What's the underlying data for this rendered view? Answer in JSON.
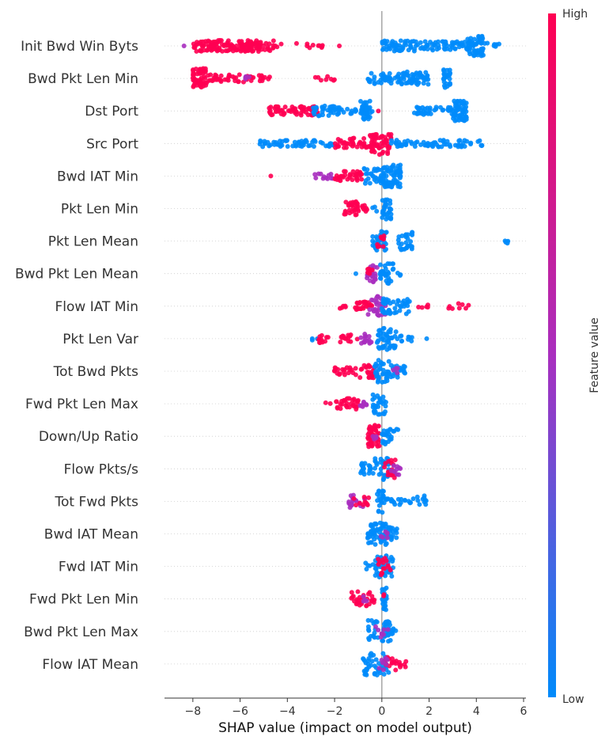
{
  "chart_data": {
    "type": "scatter",
    "subtype": "shap-beeswarm",
    "xlabel": "SHAP value (impact on model output)",
    "xlim": [
      -9.2,
      6.1
    ],
    "xticks": [
      -8,
      -6,
      -4,
      -2,
      0,
      2,
      4,
      6
    ],
    "xtick_labels": [
      "−8",
      "−6",
      "−4",
      "−2",
      "0",
      "2",
      "4",
      "6"
    ],
    "grid": false,
    "features": [
      {
        "name": "Init Bwd Win Byts",
        "clusters": [
          {
            "x": [
              -8.0,
              -4.5
            ],
            "spread": 0.5,
            "n": 160,
            "color": "high"
          },
          {
            "x": [
              -4.5,
              -2.5
            ],
            "spread": 0.25,
            "n": 12,
            "color": "high"
          },
          {
            "x": [
              -8.5,
              -8.3
            ],
            "spread": 0.0,
            "n": 1,
            "color": "mid"
          },
          {
            "x": [
              -1.8,
              -1.8
            ],
            "spread": 0.0,
            "n": 1,
            "color": "high"
          },
          {
            "x": [
              0.0,
              1.5
            ],
            "spread": 0.5,
            "n": 50,
            "color": "low"
          },
          {
            "x": [
              1.5,
              3.5
            ],
            "spread": 0.4,
            "n": 50,
            "color": "low"
          },
          {
            "x": [
              3.5,
              4.3
            ],
            "spread": 0.9,
            "n": 60,
            "color": "low"
          },
          {
            "x": [
              4.3,
              5.0
            ],
            "spread": 0.3,
            "n": 8,
            "color": "low"
          }
        ]
      },
      {
        "name": "Bwd Pkt Len Min",
        "clusters": [
          {
            "x": [
              -8.0,
              -7.4
            ],
            "spread": 0.9,
            "n": 55,
            "color": "high"
          },
          {
            "x": [
              -7.4,
              -5.4
            ],
            "spread": 0.35,
            "n": 40,
            "color": "high"
          },
          {
            "x": [
              -5.2,
              -4.6
            ],
            "spread": 0.3,
            "n": 10,
            "color": "high"
          },
          {
            "x": [
              -3.4,
              -2.0
            ],
            "spread": 0.2,
            "n": 8,
            "color": "high"
          },
          {
            "x": [
              -6.0,
              -5.6
            ],
            "spread": 0.2,
            "n": 4,
            "color": "mid"
          },
          {
            "x": [
              -0.6,
              0.8
            ],
            "spread": 0.5,
            "n": 40,
            "color": "low"
          },
          {
            "x": [
              0.8,
              2.0
            ],
            "spread": 0.6,
            "n": 55,
            "color": "low"
          },
          {
            "x": [
              2.6,
              2.9
            ],
            "spread": 0.9,
            "n": 25,
            "color": "low"
          }
        ]
      },
      {
        "name": "Dst Port",
        "clusters": [
          {
            "x": [
              -4.8,
              -2.6
            ],
            "spread": 0.4,
            "n": 70,
            "color": "high"
          },
          {
            "x": [
              -3.0,
              -1.8
            ],
            "spread": 0.45,
            "n": 40,
            "color": "low"
          },
          {
            "x": [
              -1.8,
              -0.4
            ],
            "spread": 0.3,
            "n": 25,
            "color": "low"
          },
          {
            "x": [
              -0.9,
              -0.5
            ],
            "spread": 0.9,
            "n": 35,
            "color": "low"
          },
          {
            "x": [
              -0.2,
              0.0
            ],
            "spread": 0.0,
            "n": 1,
            "color": "high"
          },
          {
            "x": [
              1.3,
              3.0
            ],
            "spread": 0.35,
            "n": 40,
            "color": "low"
          },
          {
            "x": [
              3.0,
              3.6
            ],
            "spread": 0.9,
            "n": 60,
            "color": "low"
          }
        ]
      },
      {
        "name": "Src Port",
        "clusters": [
          {
            "x": [
              -5.2,
              -2.0
            ],
            "spread": 0.3,
            "n": 60,
            "color": "low"
          },
          {
            "x": [
              -2.0,
              -0.5
            ],
            "spread": 0.5,
            "n": 40,
            "color": "high"
          },
          {
            "x": [
              -0.5,
              0.4
            ],
            "spread": 1.0,
            "n": 60,
            "color": "high"
          },
          {
            "x": [
              0.4,
              4.3
            ],
            "spread": 0.3,
            "n": 70,
            "color": "low"
          }
        ]
      },
      {
        "name": "Bwd IAT Min",
        "clusters": [
          {
            "x": [
              -4.7,
              -4.7
            ],
            "spread": 0.0,
            "n": 1,
            "color": "high"
          },
          {
            "x": [
              -2.9,
              -2.0
            ],
            "spread": 0.25,
            "n": 12,
            "color": "mid"
          },
          {
            "x": [
              -2.0,
              -0.8
            ],
            "spread": 0.45,
            "n": 35,
            "color": "high"
          },
          {
            "x": [
              -0.8,
              0.0
            ],
            "spread": 0.7,
            "n": 30,
            "color": "low"
          },
          {
            "x": [
              0.0,
              0.8
            ],
            "spread": 1.0,
            "n": 70,
            "color": "low"
          }
        ]
      },
      {
        "name": "Pkt Len Min",
        "clusters": [
          {
            "x": [
              -1.6,
              -1.0
            ],
            "spread": 0.7,
            "n": 30,
            "color": "high"
          },
          {
            "x": [
              -1.0,
              -0.6
            ],
            "spread": 0.35,
            "n": 10,
            "color": "high"
          },
          {
            "x": [
              -0.4,
              -0.2
            ],
            "spread": 0.3,
            "n": 3,
            "color": "low"
          },
          {
            "x": [
              0.0,
              0.4
            ],
            "spread": 1.0,
            "n": 30,
            "color": "low"
          }
        ]
      },
      {
        "name": "Pkt Len Mean",
        "clusters": [
          {
            "x": [
              -0.4,
              0.2
            ],
            "spread": 0.9,
            "n": 40,
            "color": "low"
          },
          {
            "x": [
              -0.2,
              0.1
            ],
            "spread": 0.6,
            "n": 10,
            "color": "high"
          },
          {
            "x": [
              0.7,
              1.3
            ],
            "spread": 0.8,
            "n": 30,
            "color": "low"
          },
          {
            "x": [
              5.2,
              5.4
            ],
            "spread": 0.2,
            "n": 5,
            "color": "low"
          }
        ]
      },
      {
        "name": "Bwd Pkt Len Mean",
        "clusters": [
          {
            "x": [
              -1.1,
              -1.1
            ],
            "spread": 0.0,
            "n": 1,
            "color": "low"
          },
          {
            "x": [
              -0.7,
              -0.2
            ],
            "spread": 0.8,
            "n": 25,
            "color": "mid"
          },
          {
            "x": [
              -0.6,
              -0.4
            ],
            "spread": 0.5,
            "n": 6,
            "color": "high"
          },
          {
            "x": [
              -0.1,
              0.5
            ],
            "spread": 0.9,
            "n": 30,
            "color": "low"
          },
          {
            "x": [
              0.6,
              0.8
            ],
            "spread": 0.2,
            "n": 3,
            "color": "low"
          }
        ]
      },
      {
        "name": "Flow IAT Min",
        "clusters": [
          {
            "x": [
              -1.9,
              -1.2
            ],
            "spread": 0.2,
            "n": 5,
            "color": "high"
          },
          {
            "x": [
              -1.2,
              -0.4
            ],
            "spread": 0.4,
            "n": 25,
            "color": "high"
          },
          {
            "x": [
              -0.6,
              0.2
            ],
            "spread": 0.9,
            "n": 30,
            "color": "mid"
          },
          {
            "x": [
              0.0,
              1.2
            ],
            "spread": 0.7,
            "n": 45,
            "color": "low"
          },
          {
            "x": [
              1.4,
              2.0
            ],
            "spread": 0.2,
            "n": 5,
            "color": "high"
          },
          {
            "x": [
              2.7,
              3.7
            ],
            "spread": 0.25,
            "n": 8,
            "color": "high"
          }
        ]
      },
      {
        "name": "Pkt Len Var",
        "clusters": [
          {
            "x": [
              -3.0,
              -2.7
            ],
            "spread": 0.2,
            "n": 3,
            "color": "low"
          },
          {
            "x": [
              -2.7,
              -2.2
            ],
            "spread": 0.4,
            "n": 12,
            "color": "high"
          },
          {
            "x": [
              -1.8,
              -1.0
            ],
            "spread": 0.35,
            "n": 15,
            "color": "high"
          },
          {
            "x": [
              -1.0,
              -0.3
            ],
            "spread": 0.45,
            "n": 15,
            "color": "mid"
          },
          {
            "x": [
              -0.2,
              0.6
            ],
            "spread": 1.0,
            "n": 45,
            "color": "low"
          },
          {
            "x": [
              0.6,
              1.3
            ],
            "spread": 0.3,
            "n": 10,
            "color": "low"
          },
          {
            "x": [
              1.9,
              1.9
            ],
            "spread": 0.0,
            "n": 1,
            "color": "low"
          }
        ]
      },
      {
        "name": "Tot Bwd Pkts",
        "clusters": [
          {
            "x": [
              -2.1,
              -1.0
            ],
            "spread": 0.35,
            "n": 20,
            "color": "high"
          },
          {
            "x": [
              -1.0,
              -0.2
            ],
            "spread": 0.6,
            "n": 25,
            "color": "high"
          },
          {
            "x": [
              -0.3,
              0.3
            ],
            "spread": 1.0,
            "n": 35,
            "color": "low"
          },
          {
            "x": [
              0.3,
              1.0
            ],
            "spread": 0.6,
            "n": 20,
            "color": "low"
          },
          {
            "x": [
              0.4,
              0.7
            ],
            "spread": 0.3,
            "n": 4,
            "color": "mid"
          }
        ]
      },
      {
        "name": "Fwd Pkt Len Max",
        "clusters": [
          {
            "x": [
              -2.4,
              -2.0
            ],
            "spread": 0.1,
            "n": 2,
            "color": "high"
          },
          {
            "x": [
              -2.0,
              -1.0
            ],
            "spread": 0.5,
            "n": 30,
            "color": "high"
          },
          {
            "x": [
              -1.1,
              -0.6
            ],
            "spread": 0.35,
            "n": 10,
            "color": "mid"
          },
          {
            "x": [
              -0.4,
              0.2
            ],
            "spread": 1.0,
            "n": 30,
            "color": "low"
          }
        ]
      },
      {
        "name": "Down/Up Ratio",
        "clusters": [
          {
            "x": [
              -0.6,
              -0.1
            ],
            "spread": 1.0,
            "n": 50,
            "color": "high"
          },
          {
            "x": [
              -0.4,
              -0.2
            ],
            "spread": 0.4,
            "n": 4,
            "color": "mid"
          },
          {
            "x": [
              0.0,
              0.7
            ],
            "spread": 0.8,
            "n": 25,
            "color": "low"
          }
        ]
      },
      {
        "name": "Flow Pkts/s",
        "clusters": [
          {
            "x": [
              -0.9,
              -0.3
            ],
            "spread": 0.5,
            "n": 20,
            "color": "low"
          },
          {
            "x": [
              -0.3,
              0.3
            ],
            "spread": 1.0,
            "n": 30,
            "color": "low"
          },
          {
            "x": [
              0.1,
              0.6
            ],
            "spread": 0.9,
            "n": 20,
            "color": "high"
          },
          {
            "x": [
              0.4,
              0.8
            ],
            "spread": 0.6,
            "n": 10,
            "color": "mid"
          }
        ]
      },
      {
        "name": "Tot Fwd Pkts",
        "clusters": [
          {
            "x": [
              -1.4,
              -0.7
            ],
            "spread": 0.6,
            "n": 20,
            "color": "mid"
          },
          {
            "x": [
              -1.2,
              -0.5
            ],
            "spread": 0.4,
            "n": 10,
            "color": "high"
          },
          {
            "x": [
              -0.2,
              0.1
            ],
            "spread": 1.0,
            "n": 20,
            "color": "low"
          },
          {
            "x": [
              0.1,
              1.4
            ],
            "spread": 0.3,
            "n": 20,
            "color": "low"
          },
          {
            "x": [
              1.5,
              1.9
            ],
            "spread": 0.7,
            "n": 10,
            "color": "low"
          }
        ]
      },
      {
        "name": "Bwd IAT Mean",
        "clusters": [
          {
            "x": [
              -0.6,
              0.2
            ],
            "spread": 1.0,
            "n": 60,
            "color": "low"
          },
          {
            "x": [
              0.2,
              0.7
            ],
            "spread": 0.6,
            "n": 20,
            "color": "low"
          },
          {
            "x": [
              -0.2,
              0.4
            ],
            "spread": 0.5,
            "n": 6,
            "color": "mid"
          }
        ]
      },
      {
        "name": "Fwd IAT Min",
        "clusters": [
          {
            "x": [
              -0.7,
              -0.3
            ],
            "spread": 0.3,
            "n": 5,
            "color": "low"
          },
          {
            "x": [
              -0.3,
              0.5
            ],
            "spread": 1.0,
            "n": 45,
            "color": "low"
          },
          {
            "x": [
              -0.2,
              0.4
            ],
            "spread": 0.8,
            "n": 15,
            "color": "high"
          }
        ]
      },
      {
        "name": "Fwd Pkt Len Min",
        "clusters": [
          {
            "x": [
              -1.3,
              -0.3
            ],
            "spread": 0.7,
            "n": 30,
            "color": "high"
          },
          {
            "x": [
              -0.9,
              -0.6
            ],
            "spread": 0.3,
            "n": 4,
            "color": "mid"
          },
          {
            "x": [
              0.0,
              0.2
            ],
            "spread": 1.0,
            "n": 20,
            "color": "low"
          },
          {
            "x": [
              0.0,
              0.15
            ],
            "spread": 0.5,
            "n": 2,
            "color": "high"
          }
        ]
      },
      {
        "name": "Bwd Pkt Len Max",
        "clusters": [
          {
            "x": [
              -0.6,
              0.4
            ],
            "spread": 1.0,
            "n": 45,
            "color": "low"
          },
          {
            "x": [
              0.4,
              0.8
            ],
            "spread": 0.3,
            "n": 6,
            "color": "low"
          },
          {
            "x": [
              -0.3,
              0.3
            ],
            "spread": 0.6,
            "n": 8,
            "color": "mid"
          }
        ]
      },
      {
        "name": "Flow IAT Mean",
        "clusters": [
          {
            "x": [
              -0.8,
              0.3
            ],
            "spread": 1.0,
            "n": 45,
            "color": "low"
          },
          {
            "x": [
              0.0,
              0.6
            ],
            "spread": 0.6,
            "n": 15,
            "color": "high"
          },
          {
            "x": [
              0.6,
              1.1
            ],
            "spread": 0.3,
            "n": 8,
            "color": "high"
          },
          {
            "x": [
              -0.2,
              0.3
            ],
            "spread": 0.6,
            "n": 8,
            "color": "mid"
          }
        ]
      }
    ],
    "colorbar": {
      "high_label": "High",
      "low_label": "Low",
      "title": "Feature value",
      "high_color": "#ff0052",
      "mid_color": "#a92fbf",
      "low_color": "#008bfb"
    }
  }
}
